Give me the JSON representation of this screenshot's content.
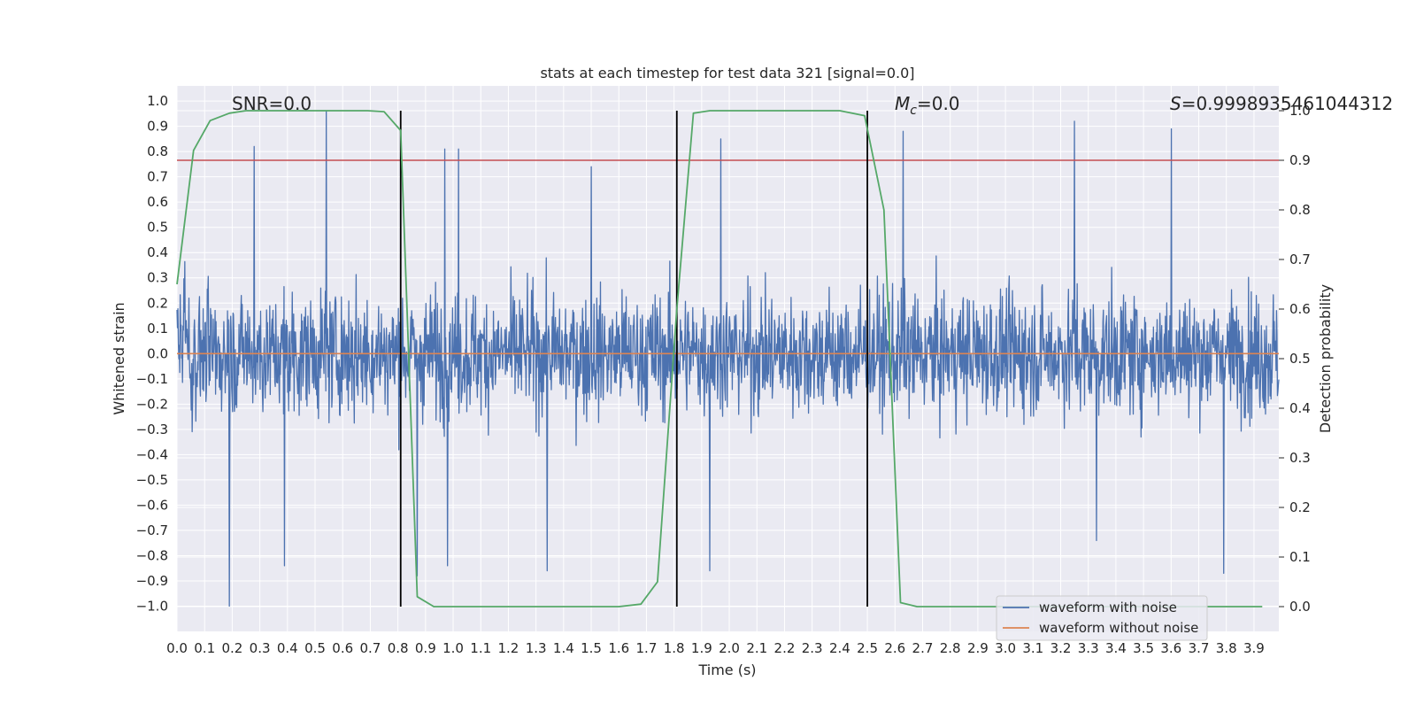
{
  "chart_data": {
    "type": "line",
    "title": "stats at each timestep for test data 321 [signal=0.0]",
    "xlabel": "Time (s)",
    "ylabel": "Whitened strain",
    "y2label": "Detection probability",
    "xlim": [
      0.0,
      3.99
    ],
    "ylim": [
      -1.1,
      1.06
    ],
    "y2lim": [
      -0.05,
      1.05
    ],
    "xticks": [
      "0.0",
      "0.1",
      "0.2",
      "0.3",
      "0.4",
      "0.5",
      "0.6",
      "0.7",
      "0.8",
      "0.9",
      "1.0",
      "1.1",
      "1.2",
      "1.3",
      "1.4",
      "1.5",
      "1.6",
      "1.7",
      "1.8",
      "1.9",
      "2.0",
      "2.1",
      "2.2",
      "2.3",
      "2.4",
      "2.5",
      "2.6",
      "2.7",
      "2.8",
      "2.9",
      "3.0",
      "3.1",
      "3.2",
      "3.3",
      "3.4",
      "3.5",
      "3.6",
      "3.7",
      "3.8",
      "3.9"
    ],
    "yticks": [
      "1.0",
      "0.9",
      "0.8",
      "0.7",
      "0.6",
      "0.5",
      "0.4",
      "0.3",
      "0.2",
      "0.1",
      "0.0",
      "−0.1",
      "−0.2",
      "−0.3",
      "−0.4",
      "−0.5",
      "−0.6",
      "−0.7",
      "−0.8",
      "−0.9",
      "−1.0"
    ],
    "y2ticks": [
      "1.0",
      "0.9",
      "0.8",
      "0.7",
      "0.6",
      "0.5",
      "0.4",
      "0.3",
      "0.2",
      "0.1",
      "0.0"
    ],
    "annotations": {
      "snr": "SNR=0.0",
      "mc_symbol": "M",
      "mc_sub": "c",
      "mc_value": "=0.0",
      "s_symbol": "S",
      "s_value": "=0.9998935461044312"
    },
    "noise_peaks": {
      "positive": [
        [
          0.28,
          0.82
        ],
        [
          0.54,
          0.96
        ],
        [
          0.97,
          0.81
        ],
        [
          1.02,
          0.81
        ],
        [
          1.5,
          0.74
        ],
        [
          1.97,
          0.85
        ],
        [
          2.63,
          0.88
        ],
        [
          3.25,
          0.92
        ],
        [
          3.6,
          0.89
        ]
      ],
      "negative": [
        [
          0.19,
          -1.0
        ],
        [
          0.39,
          -0.84
        ],
        [
          0.87,
          -0.88
        ],
        [
          0.98,
          -0.84
        ],
        [
          1.34,
          -0.86
        ],
        [
          1.93,
          -0.86
        ],
        [
          3.33,
          -0.74
        ],
        [
          3.79,
          -0.87
        ]
      ],
      "envelope_pos": 0.45,
      "envelope_neg": -0.45
    },
    "series": [
      {
        "name": "waveform without noise",
        "axis": "left",
        "color": "#dd8452",
        "x": [
          0.0,
          3.99
        ],
        "y": [
          0.0,
          0.0
        ]
      },
      {
        "name": "detection probability",
        "axis": "right",
        "color": "#55a868",
        "x": [
          0.0,
          0.06,
          0.12,
          0.19,
          0.25,
          0.31,
          0.38,
          0.44,
          0.5,
          0.56,
          0.63,
          0.69,
          0.75,
          0.81,
          0.87,
          0.93,
          1.0,
          1.06,
          1.12,
          1.2,
          1.3,
          1.4,
          1.5,
          1.6,
          1.68,
          1.74,
          1.81,
          1.87,
          1.93,
          2.0,
          2.1,
          2.2,
          2.3,
          2.4,
          2.49,
          2.56,
          2.62,
          2.68,
          2.75,
          2.85,
          2.95,
          3.1,
          3.3,
          3.5,
          3.7,
          3.93
        ],
        "y": [
          0.65,
          0.92,
          0.98,
          0.995,
          1.0,
          1.0,
          1.0,
          1.0,
          1.0,
          1.0,
          1.0,
          1.0,
          0.998,
          0.96,
          0.02,
          0.0,
          0.0,
          0.0,
          0.0,
          0.0,
          0.0,
          0.0,
          0.0,
          0.0,
          0.005,
          0.05,
          0.6,
          0.995,
          1.0,
          1.0,
          1.0,
          1.0,
          1.0,
          1.0,
          0.99,
          0.8,
          0.008,
          0.0,
          0.0,
          0.0,
          0.0,
          0.0,
          0.0,
          0.0,
          0.0,
          0.0
        ]
      }
    ],
    "vlines": [
      0.81,
      1.81,
      2.5
    ],
    "threshold": {
      "axis": "right",
      "value": 0.9,
      "color": "#c44e52"
    },
    "legend": {
      "position": "lower-right",
      "entries": [
        {
          "label": "waveform with noise",
          "color": "#4c72b0"
        },
        {
          "label": "waveform without noise",
          "color": "#dd8452"
        }
      ]
    },
    "colors": {
      "background": "#eaeaf2",
      "grid": "#ffffff",
      "noise": "#4c72b0",
      "vline": "#000000"
    },
    "grid": true
  }
}
